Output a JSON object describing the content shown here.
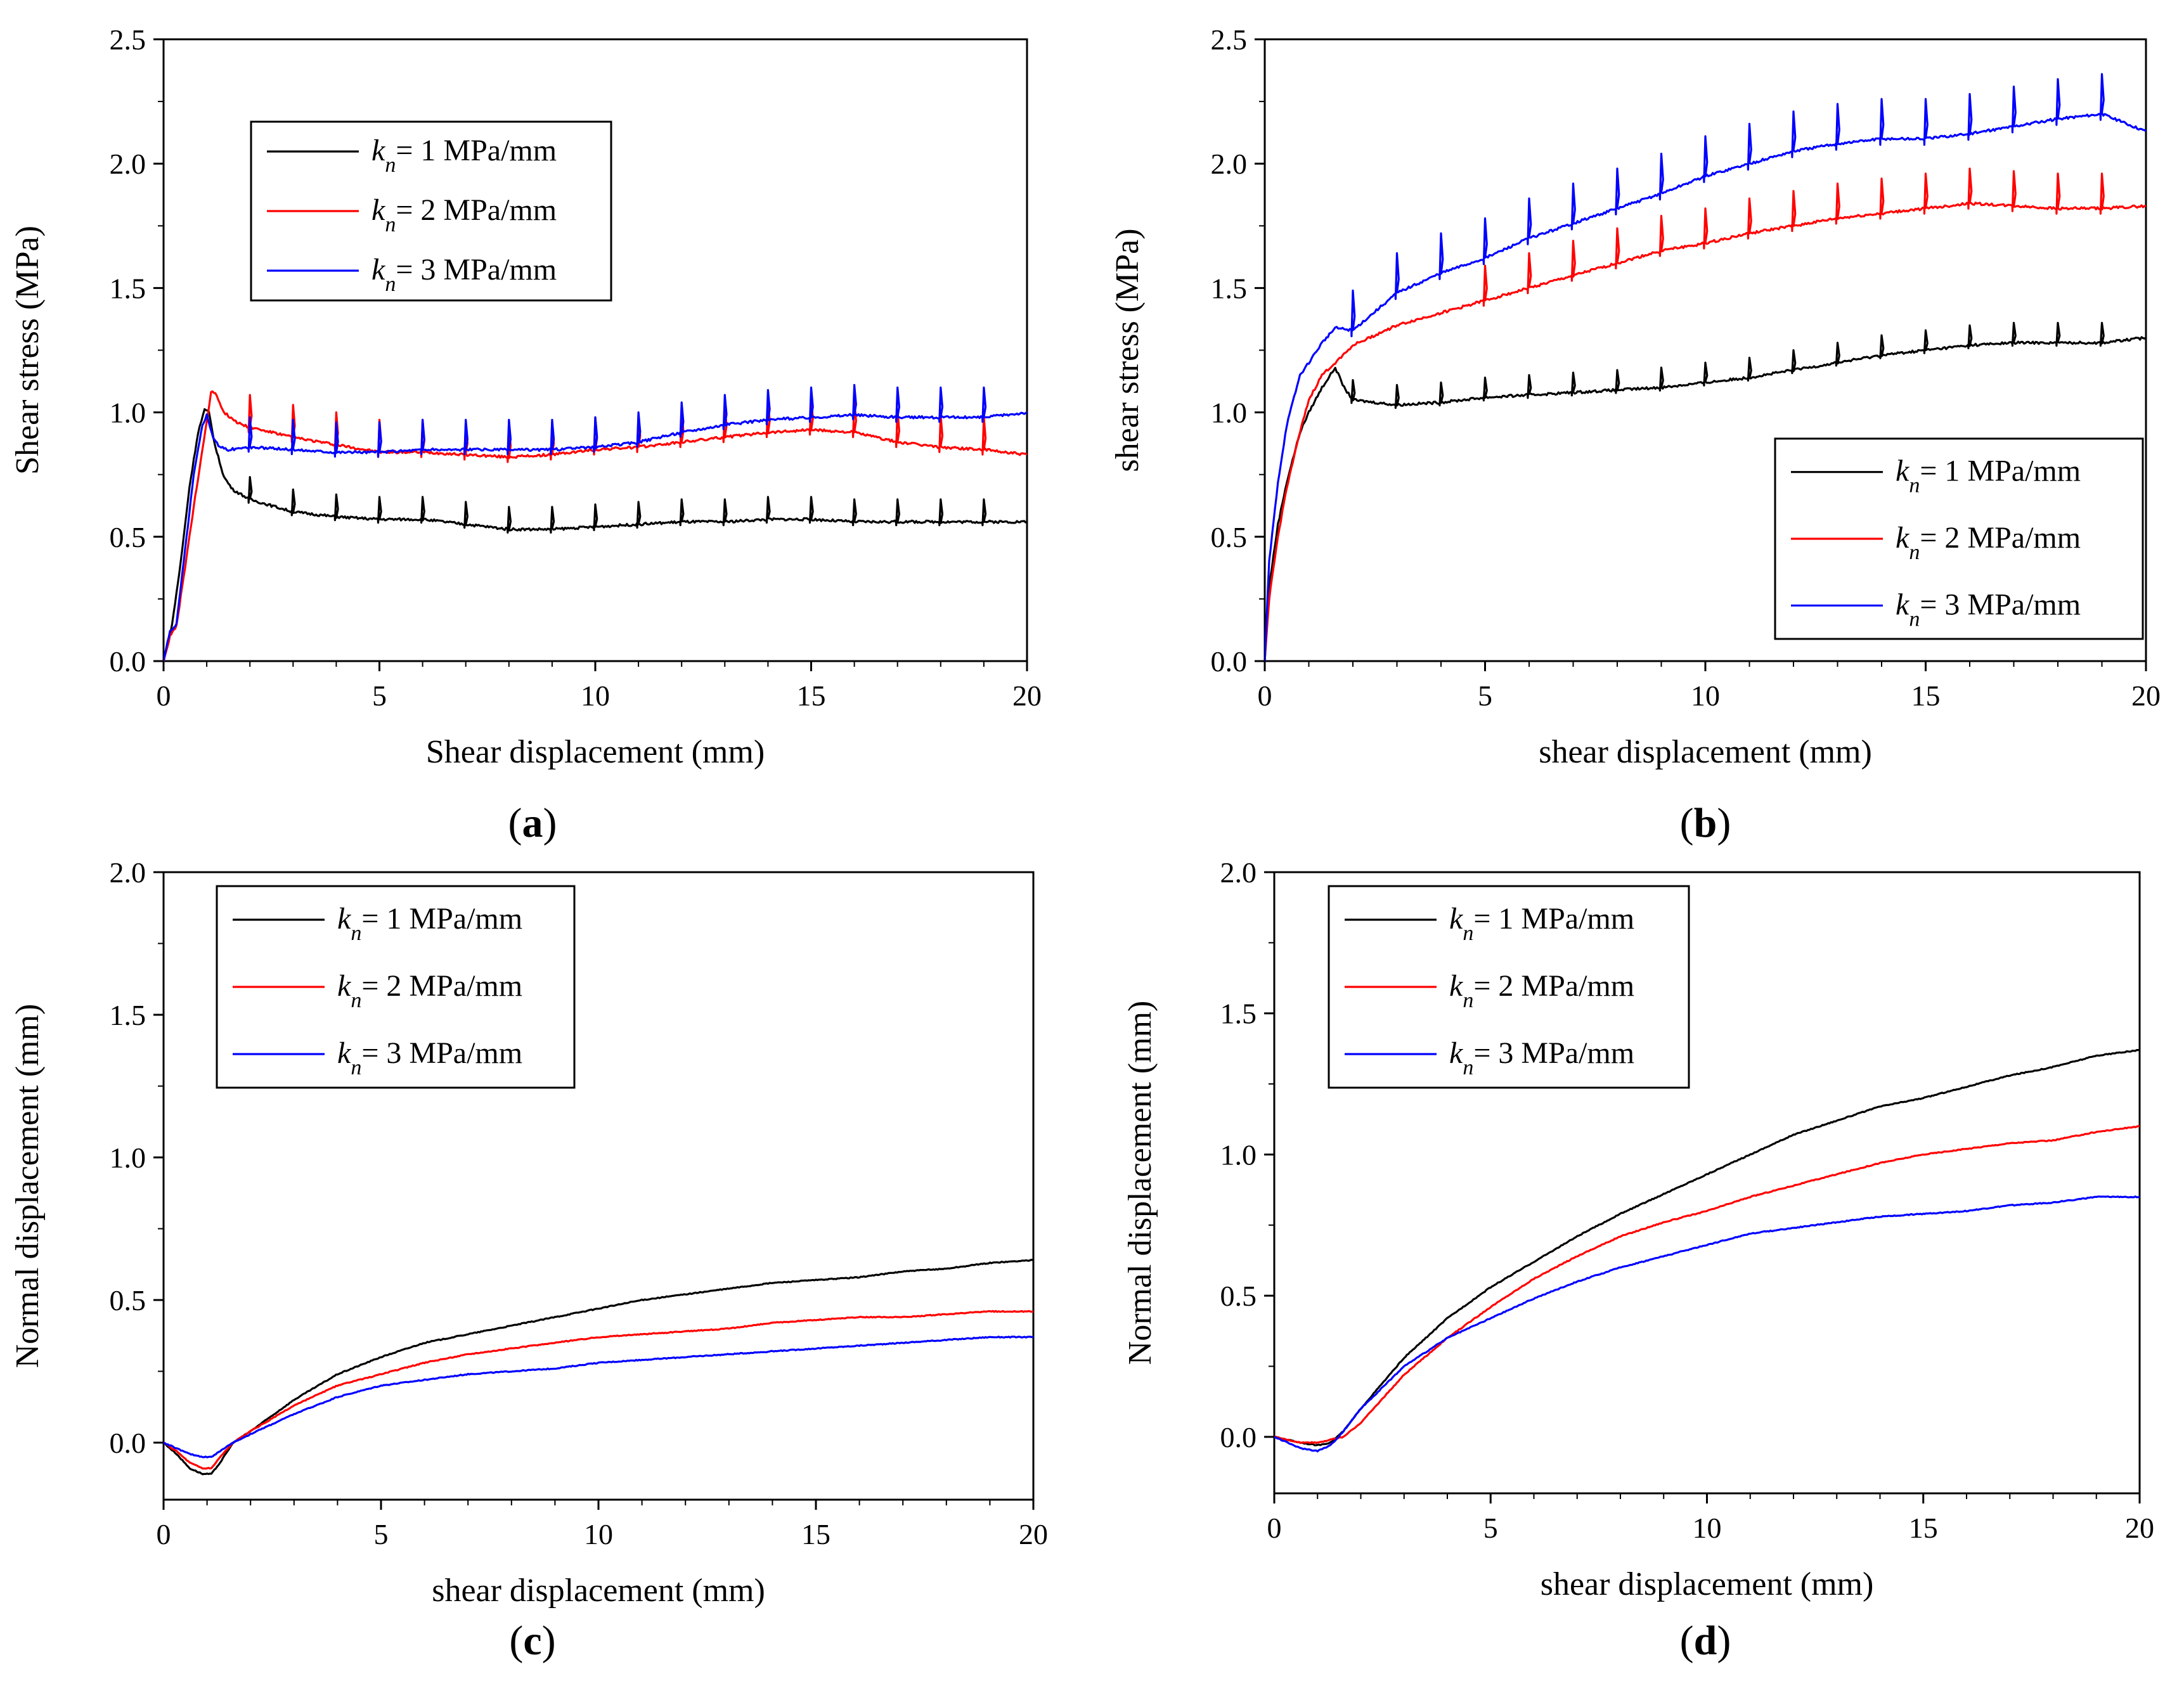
{
  "chart_data": [
    {
      "id": "a",
      "type": "line",
      "panel_label": "(a)",
      "panel_letter": "a",
      "xlabel": "Shear displacement (mm)",
      "ylabel": "Shear stress (MPa)",
      "xlim": [
        0,
        20
      ],
      "ylim": [
        0,
        2.5
      ],
      "xticks": [
        0,
        5,
        10,
        15,
        20
      ],
      "yticks": [
        0.0,
        0.5,
        1.0,
        1.5,
        2.0,
        2.5
      ],
      "ytick_decimals": 1,
      "legend": {
        "position": "upper-left"
      },
      "series": [
        {
          "name": "k_n = 1 MPa/mm",
          "k_symbol": "k",
          "k_sub": "n",
          "label_rest": "= 1 MPa/mm",
          "color": "#000000",
          "x": [
            0,
            0.2,
            0.4,
            0.6,
            0.8,
            0.95,
            1.05,
            1.2,
            1.4,
            1.6,
            2,
            3,
            4,
            5,
            6,
            7,
            8,
            9,
            10,
            11,
            12,
            13,
            14,
            15,
            16,
            17,
            18,
            19,
            20
          ],
          "y": [
            0,
            0.15,
            0.4,
            0.7,
            0.92,
            1.01,
            1.0,
            0.86,
            0.74,
            0.69,
            0.65,
            0.6,
            0.58,
            0.57,
            0.57,
            0.55,
            0.53,
            0.53,
            0.54,
            0.55,
            0.56,
            0.56,
            0.57,
            0.57,
            0.56,
            0.56,
            0.56,
            0.56,
            0.56
          ],
          "spikes": [
            2,
            3,
            4,
            5,
            6,
            7,
            8,
            9,
            10,
            11,
            12,
            13,
            14,
            15,
            16,
            17,
            18,
            19
          ],
          "spike_height": 0.09
        },
        {
          "name": "k_n = 2 MPa/mm",
          "k_symbol": "k",
          "k_sub": "n",
          "label_rest": "= 2 MPa/mm",
          "color": "#ff0000",
          "x": [
            0,
            0.15,
            0.3,
            0.5,
            0.7,
            0.9,
            1.1,
            1.2,
            1.4,
            1.7,
            2,
            3,
            4,
            5,
            6,
            7,
            8,
            9,
            10,
            11,
            12,
            13,
            14,
            15,
            16,
            17,
            18,
            19,
            20
          ],
          "y": [
            0,
            0.1,
            0.14,
            0.38,
            0.62,
            0.85,
            1.08,
            1.08,
            1.0,
            0.96,
            0.94,
            0.9,
            0.87,
            0.84,
            0.84,
            0.83,
            0.82,
            0.83,
            0.85,
            0.86,
            0.88,
            0.9,
            0.92,
            0.93,
            0.92,
            0.88,
            0.86,
            0.85,
            0.83
          ],
          "spikes": [
            2,
            3,
            4,
            5,
            6,
            7,
            8,
            9,
            10,
            11,
            12,
            13,
            14,
            15,
            16,
            17,
            18,
            19
          ],
          "spike_height": 0.13
        },
        {
          "name": "k_n = 3 MPa/mm",
          "k_symbol": "k",
          "k_sub": "n",
          "label_rest": "= 3 MPa/mm",
          "color": "#0000ff",
          "x": [
            0,
            0.15,
            0.3,
            0.5,
            0.7,
            0.9,
            1.0,
            1.15,
            1.3,
            1.5,
            2,
            3,
            4,
            5,
            6,
            7,
            8,
            9,
            10,
            11,
            12,
            13,
            14,
            15,
            16,
            17,
            18,
            19,
            20
          ],
          "y": [
            0,
            0.12,
            0.15,
            0.45,
            0.75,
            0.95,
            0.99,
            0.9,
            0.86,
            0.85,
            0.86,
            0.85,
            0.84,
            0.84,
            0.85,
            0.85,
            0.85,
            0.85,
            0.86,
            0.88,
            0.92,
            0.95,
            0.97,
            0.98,
            0.99,
            0.98,
            0.98,
            0.98,
            1.0
          ],
          "spikes": [
            2,
            3,
            4,
            5,
            6,
            7,
            8,
            9,
            10,
            11,
            12,
            13,
            14,
            15,
            16,
            17,
            18,
            19
          ],
          "spike_height": 0.12
        }
      ]
    },
    {
      "id": "b",
      "type": "line",
      "panel_label": "(b)",
      "panel_letter": "b",
      "xlabel": "shear displacement (mm)",
      "ylabel": "shear stress (MPa)",
      "xlim": [
        0,
        20
      ],
      "ylim": [
        0,
        2.5
      ],
      "xticks": [
        0,
        5,
        10,
        15,
        20
      ],
      "yticks": [
        0.0,
        0.5,
        1.0,
        1.5,
        2.0,
        2.5
      ],
      "ytick_decimals": 1,
      "legend": {
        "position": "lower-right"
      },
      "series": [
        {
          "name": "k_n = 1 MPa/mm",
          "k_symbol": "k",
          "k_sub": "n",
          "label_rest": "= 1 MPa/mm",
          "color": "#000000",
          "x": [
            0,
            0.1,
            0.3,
            0.5,
            0.8,
            1.0,
            1.3,
            1.6,
            1.8,
            2,
            3,
            4,
            5,
            6,
            7,
            8,
            9,
            10,
            11,
            12,
            13,
            14,
            15,
            16,
            17,
            18,
            19,
            20
          ],
          "y": [
            0,
            0.3,
            0.55,
            0.72,
            0.92,
            1.0,
            1.1,
            1.18,
            1.1,
            1.05,
            1.03,
            1.04,
            1.06,
            1.07,
            1.08,
            1.09,
            1.1,
            1.12,
            1.14,
            1.17,
            1.2,
            1.23,
            1.25,
            1.27,
            1.28,
            1.28,
            1.28,
            1.3
          ],
          "spikes": [
            2,
            3,
            4,
            5,
            6,
            7,
            8,
            9,
            10,
            11,
            12,
            13,
            14,
            15,
            16,
            17,
            18,
            19
          ],
          "spike_height": 0.08
        },
        {
          "name": "k_n = 2 MPa/mm",
          "k_symbol": "k",
          "k_sub": "n",
          "label_rest": "= 2 MPa/mm",
          "color": "#ff0000",
          "x": [
            0,
            0.1,
            0.3,
            0.5,
            0.8,
            1.0,
            1.3,
            1.6,
            2,
            3,
            4,
            5,
            6,
            7,
            8,
            9,
            10,
            11,
            12,
            13,
            14,
            15,
            16,
            17,
            18,
            19,
            20
          ],
          "y": [
            0,
            0.25,
            0.5,
            0.7,
            0.92,
            1.05,
            1.15,
            1.2,
            1.27,
            1.35,
            1.4,
            1.45,
            1.5,
            1.55,
            1.6,
            1.65,
            1.68,
            1.72,
            1.75,
            1.78,
            1.8,
            1.82,
            1.84,
            1.83,
            1.82,
            1.82,
            1.83
          ],
          "spikes": [
            5,
            6,
            7,
            8,
            9,
            10,
            11,
            12,
            13,
            14,
            15,
            16,
            17,
            18,
            19
          ],
          "spike_height": 0.14
        },
        {
          "name": "k_n = 3 MPa/mm",
          "k_symbol": "k",
          "k_sub": "n",
          "label_rest": "= 3 MPa/mm",
          "color": "#0000ff",
          "x": [
            0,
            0.1,
            0.3,
            0.5,
            0.8,
            1.0,
            1.3,
            1.6,
            2,
            3,
            4,
            5,
            6,
            7,
            8,
            9,
            10,
            11,
            12,
            13,
            14,
            15,
            16,
            17,
            18,
            19,
            20
          ],
          "y": [
            0,
            0.4,
            0.72,
            0.95,
            1.15,
            1.2,
            1.28,
            1.34,
            1.33,
            1.48,
            1.56,
            1.62,
            1.7,
            1.76,
            1.82,
            1.88,
            1.95,
            2.0,
            2.05,
            2.08,
            2.1,
            2.1,
            2.12,
            2.15,
            2.18,
            2.2,
            2.13
          ],
          "spikes": [
            2,
            3,
            4,
            5,
            6,
            7,
            8,
            9,
            10,
            11,
            12,
            13,
            14,
            15,
            16,
            17,
            18,
            19
          ],
          "spike_height": 0.16
        }
      ]
    },
    {
      "id": "c",
      "type": "line",
      "panel_label": "(c)",
      "panel_letter": "c",
      "xlabel": "shear displacement (mm)",
      "ylabel": "Normal displacement (mm)",
      "xlim": [
        0,
        20
      ],
      "ylim": [
        -0.2,
        2.0
      ],
      "xticks": [
        0,
        5,
        10,
        15,
        20
      ],
      "yticks": [
        0.0,
        0.5,
        1.0,
        1.5,
        2.0
      ],
      "ytick_decimals": 1,
      "legend": {
        "position": "upper-left"
      },
      "series": [
        {
          "name": "k_n = 1 MPa/mm",
          "k_symbol": "k",
          "k_sub": "n",
          "label_rest": "= 1 MPa/mm",
          "color": "#000000",
          "x": [
            0,
            0.3,
            0.6,
            0.9,
            1.1,
            1.3,
            1.6,
            2,
            3,
            4,
            5,
            6,
            7,
            8,
            9,
            10,
            11,
            12,
            13,
            14,
            15,
            16,
            17,
            18,
            19,
            20
          ],
          "y": [
            0,
            -0.04,
            -0.09,
            -0.11,
            -0.11,
            -0.07,
            0.0,
            0.04,
            0.15,
            0.24,
            0.3,
            0.35,
            0.38,
            0.41,
            0.44,
            0.47,
            0.5,
            0.52,
            0.54,
            0.56,
            0.57,
            0.58,
            0.6,
            0.61,
            0.63,
            0.64
          ]
        },
        {
          "name": "k_n = 2 MPa/mm",
          "k_symbol": "k",
          "k_sub": "n",
          "label_rest": "= 2 MPa/mm",
          "color": "#ff0000",
          "x": [
            0,
            0.3,
            0.6,
            0.9,
            1.1,
            1.3,
            1.6,
            2,
            3,
            4,
            5,
            6,
            7,
            8,
            9,
            10,
            11,
            12,
            13,
            14,
            15,
            16,
            17,
            18,
            19,
            20
          ],
          "y": [
            0,
            -0.03,
            -0.07,
            -0.09,
            -0.09,
            -0.05,
            0.0,
            0.04,
            0.13,
            0.2,
            0.24,
            0.28,
            0.31,
            0.33,
            0.35,
            0.37,
            0.38,
            0.39,
            0.4,
            0.42,
            0.43,
            0.44,
            0.44,
            0.45,
            0.46,
            0.46
          ]
        },
        {
          "name": "k_n = 3 MPa/mm",
          "k_symbol": "k",
          "k_sub": "n",
          "label_rest": "= 3 MPa/mm",
          "color": "#0000ff",
          "x": [
            0,
            0.3,
            0.6,
            0.9,
            1.1,
            1.3,
            1.6,
            2,
            3,
            4,
            5,
            6,
            7,
            8,
            9,
            10,
            11,
            12,
            13,
            14,
            15,
            16,
            17,
            18,
            19,
            20
          ],
          "y": [
            0,
            -0.02,
            -0.04,
            -0.05,
            -0.05,
            -0.03,
            0.0,
            0.03,
            0.1,
            0.16,
            0.2,
            0.22,
            0.24,
            0.25,
            0.26,
            0.28,
            0.29,
            0.3,
            0.31,
            0.32,
            0.33,
            0.34,
            0.35,
            0.36,
            0.37,
            0.37
          ]
        }
      ]
    },
    {
      "id": "d",
      "type": "line",
      "panel_label": "(d)",
      "panel_letter": "d",
      "xlabel": "shear displacement (mm)",
      "ylabel": "Normal displacement (mm)",
      "xlim": [
        0,
        20
      ],
      "ylim": [
        -0.2,
        2.0
      ],
      "xticks": [
        0,
        5,
        10,
        15,
        20
      ],
      "yticks": [
        0.0,
        0.5,
        1.0,
        1.5,
        2.0
      ],
      "ytick_decimals": 1,
      "legend": {
        "position": "upper-left"
      },
      "series": [
        {
          "name": "k_n = 1 MPa/mm",
          "k_symbol": "k",
          "k_sub": "n",
          "label_rest": "= 1 MPa/mm",
          "color": "#000000",
          "x": [
            0,
            0.3,
            0.6,
            1.0,
            1.3,
            1.6,
            2,
            3,
            4,
            5,
            6,
            7,
            8,
            9,
            10,
            11,
            12,
            13,
            14,
            15,
            16,
            17,
            18,
            19,
            20
          ],
          "y": [
            0,
            -0.01,
            -0.02,
            -0.03,
            -0.02,
            0.02,
            0.1,
            0.28,
            0.42,
            0.53,
            0.62,
            0.71,
            0.79,
            0.86,
            0.93,
            1.0,
            1.07,
            1.12,
            1.17,
            1.2,
            1.24,
            1.28,
            1.31,
            1.35,
            1.37
          ]
        },
        {
          "name": "k_n = 2 MPa/mm",
          "k_symbol": "k",
          "k_sub": "n",
          "label_rest": "= 2 MPa/mm",
          "color": "#ff0000",
          "x": [
            0,
            0.3,
            0.6,
            1.0,
            1.3,
            1.6,
            2,
            3,
            4,
            5,
            6,
            7,
            8,
            9,
            10,
            11,
            12,
            13,
            14,
            15,
            16,
            17,
            18,
            19,
            20
          ],
          "y": [
            0,
            -0.01,
            -0.02,
            -0.02,
            -0.01,
            0.0,
            0.05,
            0.22,
            0.35,
            0.46,
            0.56,
            0.64,
            0.71,
            0.76,
            0.8,
            0.85,
            0.89,
            0.93,
            0.97,
            1.0,
            1.02,
            1.04,
            1.05,
            1.08,
            1.1
          ]
        },
        {
          "name": "k_n = 3 MPa/mm",
          "k_symbol": "k",
          "k_sub": "n",
          "label_rest": "= 3 MPa/mm",
          "color": "#0000ff",
          "x": [
            0,
            0.3,
            0.6,
            1.0,
            1.3,
            1.6,
            2,
            3,
            4,
            5,
            6,
            7,
            8,
            9,
            10,
            11,
            12,
            13,
            14,
            15,
            16,
            17,
            18,
            19,
            20
          ],
          "y": [
            0,
            -0.02,
            -0.04,
            -0.05,
            -0.03,
            0.02,
            0.1,
            0.25,
            0.35,
            0.42,
            0.49,
            0.55,
            0.6,
            0.64,
            0.68,
            0.72,
            0.74,
            0.76,
            0.78,
            0.79,
            0.8,
            0.82,
            0.83,
            0.85,
            0.85
          ]
        }
      ]
    }
  ]
}
